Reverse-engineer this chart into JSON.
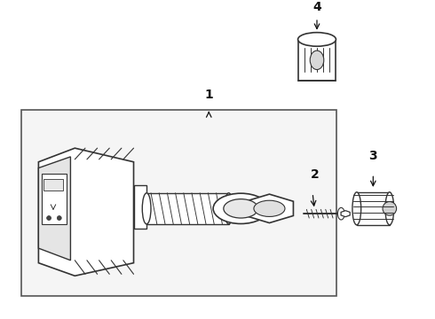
{
  "bg_color": "#ffffff",
  "line_color": "#333333",
  "text_color": "#111111",
  "box_line_color": "#555555",
  "figsize": [
    4.9,
    3.6
  ],
  "dpi": 100,
  "labels": [
    "1",
    "2",
    "3",
    "4"
  ]
}
